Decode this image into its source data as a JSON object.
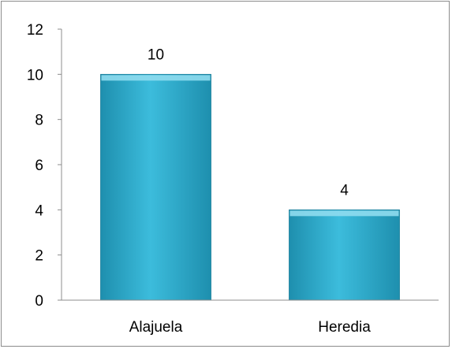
{
  "chart_data": {
    "type": "bar",
    "categories": [
      "Alajuela",
      "Heredia"
    ],
    "values": [
      10,
      4
    ],
    "data_labels": [
      "10",
      "4"
    ],
    "y_ticks": [
      "0",
      "2",
      "4",
      "6",
      "8",
      "10",
      "12"
    ],
    "ylim": [
      0,
      12
    ],
    "grid": false,
    "legend": "none",
    "colors": {
      "bar_top": "#8fdcee",
      "bar_mid": "#3cbcdc",
      "bar_bottom": "#1e8fae",
      "bar_edge": "#1a7d99",
      "axis": "#8c8c8c"
    }
  }
}
